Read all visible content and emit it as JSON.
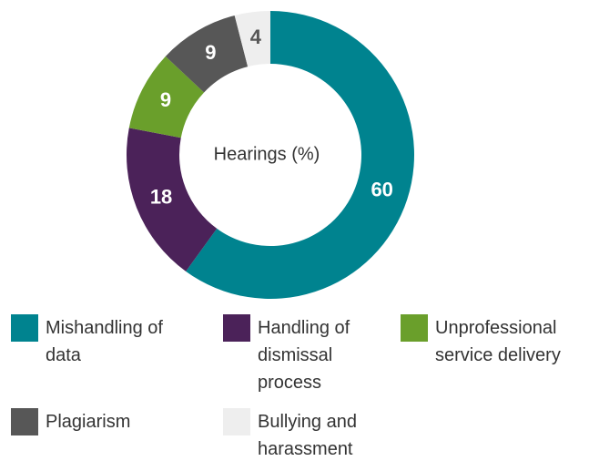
{
  "chart_data": {
    "type": "donut",
    "center_label": "Hearings (%)",
    "categories": [
      "Mishandling of data",
      "Handling of dismissal process",
      "Unprofessional service delivery",
      "Plagiarism",
      "Bullying and harassment"
    ],
    "values": [
      60,
      18,
      9,
      9,
      4
    ],
    "colors": [
      "#00838f",
      "#4b2259",
      "#6a9f2b",
      "#575757",
      "#eeeeee"
    ],
    "legend": "bottom"
  }
}
